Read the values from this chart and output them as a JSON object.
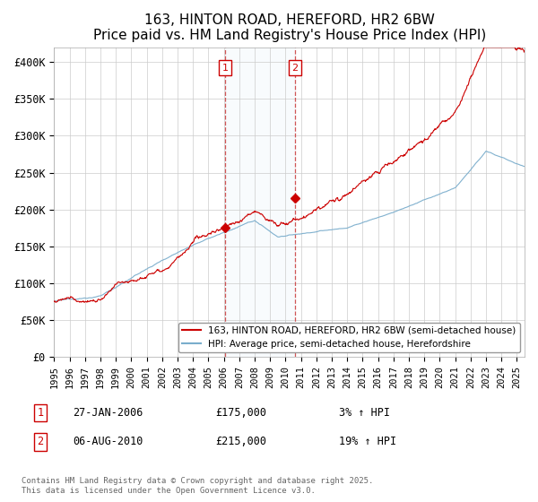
{
  "title": "163, HINTON ROAD, HEREFORD, HR2 6BW",
  "subtitle": "Price paid vs. HM Land Registry's House Price Index (HPI)",
  "ylim": [
    0,
    420000
  ],
  "yticks": [
    0,
    50000,
    100000,
    150000,
    200000,
    250000,
    300000,
    350000,
    400000
  ],
  "ytick_labels": [
    "£0",
    "£50K",
    "£100K",
    "£150K",
    "£200K",
    "£250K",
    "£300K",
    "£350K",
    "£400K"
  ],
  "title_fontsize": 11,
  "legend_label_red": "163, HINTON ROAD, HEREFORD, HR2 6BW (semi-detached house)",
  "legend_label_blue": "HPI: Average price, semi-detached house, Herefordshire",
  "annotation1_date": "27-JAN-2006",
  "annotation1_price": "£175,000",
  "annotation1_hpi": "3% ↑ HPI",
  "annotation2_date": "06-AUG-2010",
  "annotation2_price": "£215,000",
  "annotation2_hpi": "19% ↑ HPI",
  "footer": "Contains HM Land Registry data © Crown copyright and database right 2025.\nThis data is licensed under the Open Government Licence v3.0.",
  "line_color_red": "#cc0000",
  "line_color_blue": "#7aadcc",
  "shade_color": "#dce9f5",
  "vline_color": "#cc4444",
  "marker1_x": 2006.08,
  "marker1_y": 175000,
  "marker2_x": 2010.6,
  "marker2_y": 215000,
  "xmin": 1995,
  "xmax": 2025.5
}
